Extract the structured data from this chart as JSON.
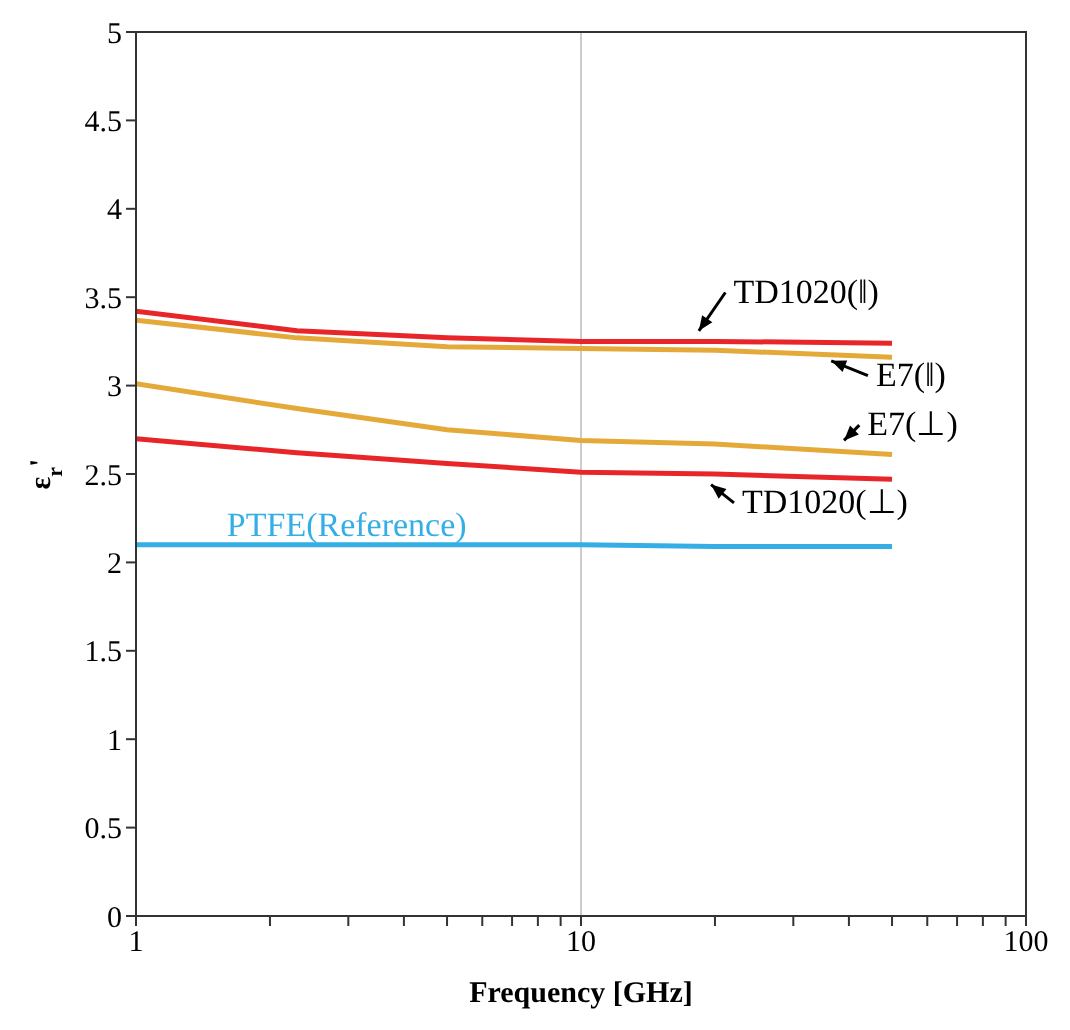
{
  "chart_data": {
    "type": "line",
    "xlabel": "Frequency [GHz]",
    "ylabel": "ε$_{r}$'",
    "log": "x",
    "grid": "x",
    "marker": "none",
    "line_style": "solid",
    "xlim": [
      1,
      100
    ],
    "xticks": [
      1,
      {
        "value": 2,
        "label": null
      },
      {
        "value": 3,
        "label": null
      },
      {
        "value": 4,
        "label": null
      },
      {
        "value": 5,
        "label": null
      },
      {
        "value": 6,
        "label": null
      },
      {
        "value": 7,
        "label": null
      },
      {
        "value": 8,
        "label": null
      },
      {
        "value": 9,
        "label": null
      },
      10,
      {
        "value": 20,
        "label": null
      },
      {
        "value": 30,
        "label": null
      },
      {
        "value": 40,
        "label": null
      },
      {
        "value": 50,
        "label": null
      },
      {
        "value": 60,
        "label": null
      },
      {
        "value": 70,
        "label": null
      },
      {
        "value": 80,
        "label": null
      },
      {
        "value": 90,
        "label": null
      },
      100
    ],
    "ylim": [
      0,
      5
    ],
    "yticks": [
      0,
      0.5,
      1,
      1.5,
      2,
      2.5,
      3,
      3.5,
      4,
      4.5,
      5
    ],
    "x": [
      1,
      2.3,
      5,
      10,
      20,
      50
    ],
    "series": [
      {
        "name": "TD1020(‖)",
        "color": "#e8262a",
        "values": [
          3.42,
          3.31,
          3.27,
          3.25,
          3.25,
          3.24
        ]
      },
      {
        "name": "E7(‖)",
        "color": "#e5a93a",
        "values": [
          3.37,
          3.27,
          3.22,
          3.21,
          3.2,
          3.16
        ]
      },
      {
        "name": "E7(⊥)",
        "color": "#e5a93a",
        "values": [
          3.01,
          2.87,
          2.75,
          2.69,
          2.67,
          2.61
        ]
      },
      {
        "name": "TD1020(⊥)",
        "color": "#e8262a",
        "values": [
          2.7,
          2.62,
          2.56,
          2.51,
          2.5,
          2.47
        ]
      },
      {
        "name": "PTFE(Reference)",
        "color": "#35aee6",
        "values": [
          2.1,
          2.1,
          2.1,
          2.1,
          2.09,
          2.09
        ]
      }
    ]
  }
}
